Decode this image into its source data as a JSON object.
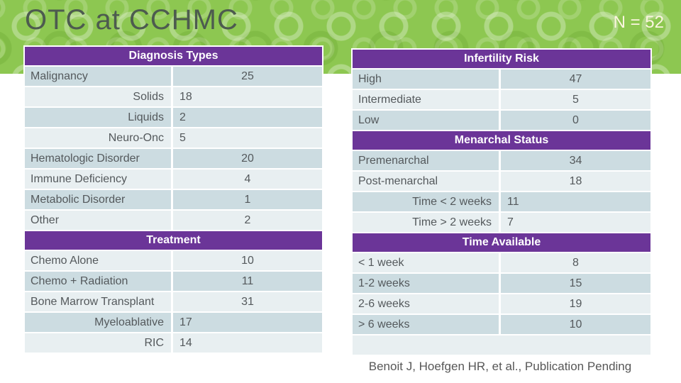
{
  "title": "OTC at CCHMC",
  "sample_size": "N = 52",
  "footer_citation": "Benoit J, Hoefgen HR, et al., Publication Pending",
  "colors": {
    "header_purple": "#6b3598",
    "row_dark": "#ccdce1",
    "row_light": "#e8eff1",
    "green_base": "#8dc751",
    "title_text": "#4d5b4f",
    "n_text": "#fbf5df",
    "body_text": "#54595c"
  },
  "left_table": {
    "sections": [
      {
        "header": "Diagnosis Types",
        "rows": [
          {
            "label": "Malignancy",
            "value": "25"
          },
          {
            "label": "Solids",
            "value": "18"
          },
          {
            "label": "Liquids",
            "value": "2"
          },
          {
            "label": "Neuro-Onc",
            "value": "5"
          },
          {
            "label": "Hematologic Disorder",
            "value": "20"
          },
          {
            "label": "Immune Deficiency",
            "value": "4"
          },
          {
            "label": "Metabolic Disorder",
            "value": "1"
          },
          {
            "label": "Other",
            "value": "2"
          }
        ]
      },
      {
        "header": "Treatment",
        "rows": [
          {
            "label": "Chemo Alone",
            "value": "10"
          },
          {
            "label": "Chemo + Radiation",
            "value": "11"
          },
          {
            "label": "Bone Marrow Transplant",
            "value": "31"
          },
          {
            "label": "Myeloablative",
            "value": "17"
          },
          {
            "label": "RIC",
            "value": "14"
          }
        ]
      }
    ]
  },
  "right_table": {
    "sections": [
      {
        "header": "Infertility Risk",
        "rows": [
          {
            "label": "High",
            "value": "47"
          },
          {
            "label": "Intermediate",
            "value": "5"
          },
          {
            "label": "Low",
            "value": "0"
          }
        ]
      },
      {
        "header": "Menarchal Status",
        "rows": [
          {
            "label": "Premenarchal",
            "value": "34"
          },
          {
            "label": "Post-menarchal",
            "value": "18"
          },
          {
            "label": "Time < 2 weeks",
            "value": "11"
          },
          {
            "label": "Time > 2 weeks",
            "value": "7"
          }
        ]
      },
      {
        "header": "Time Available",
        "rows": [
          {
            "label": "< 1 week",
            "value": "8"
          },
          {
            "label": "1-2 weeks",
            "value": "15"
          },
          {
            "label": "2-6 weeks",
            "value": "19"
          },
          {
            "label": "> 6 weeks",
            "value": "10"
          }
        ]
      }
    ]
  }
}
